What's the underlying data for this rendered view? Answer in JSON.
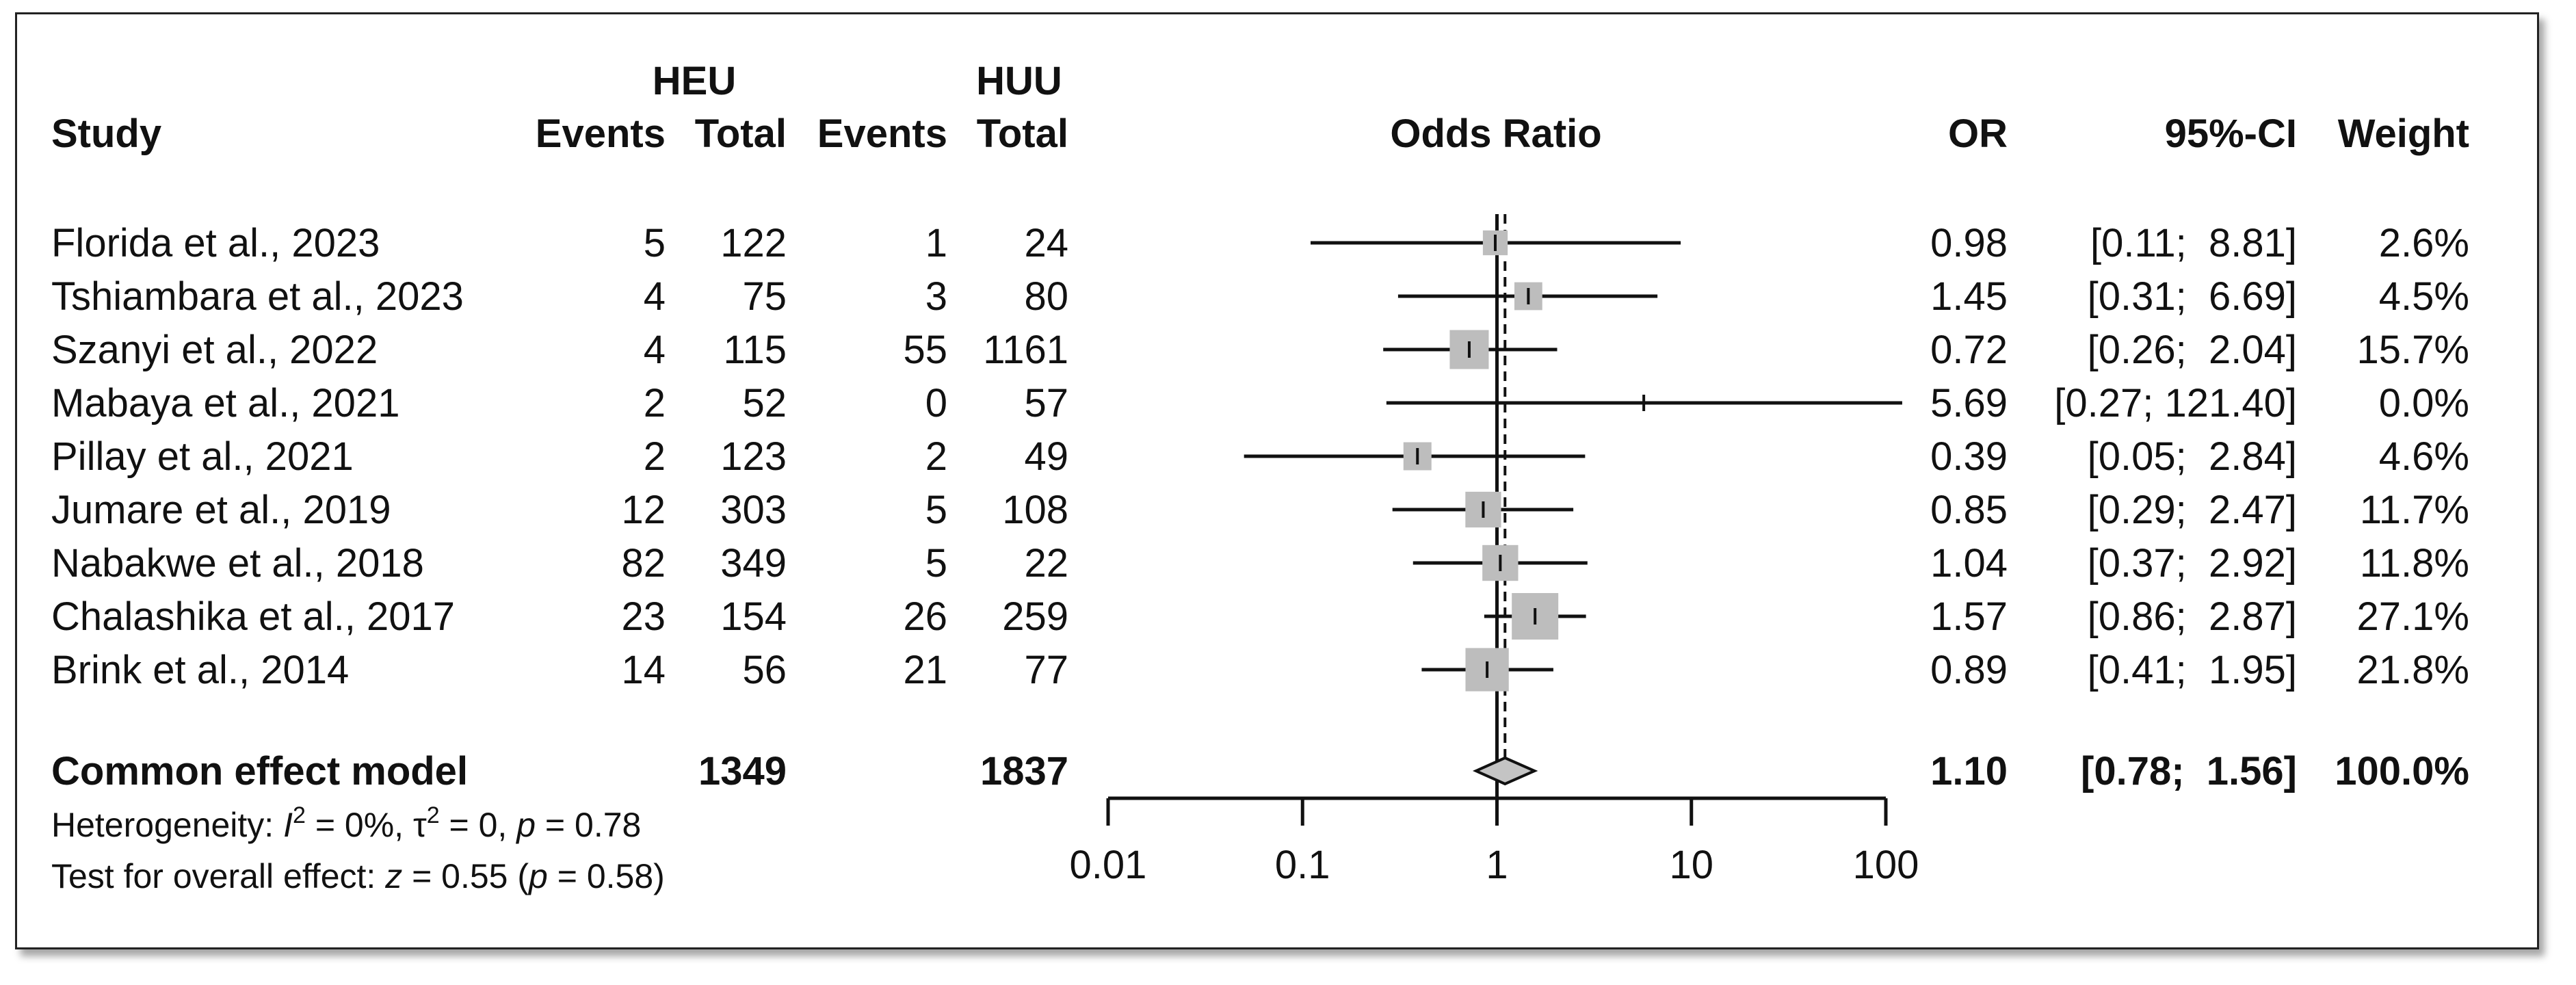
{
  "headers": {
    "study": "Study",
    "group1": "HEU",
    "group2": "HUU",
    "events": "Events",
    "total": "Total",
    "plot": "Odds Ratio",
    "or": "OR",
    "ci": "95%-CI",
    "weight": "Weight"
  },
  "studies": [
    {
      "study": "Florida et al., 2023",
      "e1": "5",
      "n1": "122",
      "e2": "1",
      "n2": "24",
      "or_text": "0.98",
      "ci_text": "[0.11;  8.81]",
      "weight_text": "2.6%"
    },
    {
      "study": "Tshiambara et al., 2023",
      "e1": "4",
      "n1": "75",
      "e2": "3",
      "n2": "80",
      "or_text": "1.45",
      "ci_text": "[0.31;  6.69]",
      "weight_text": "4.5%"
    },
    {
      "study": "Szanyi et al., 2022",
      "e1": "4",
      "n1": "115",
      "e2": "55",
      "n2": "1161",
      "or_text": "0.72",
      "ci_text": "[0.26;  2.04]",
      "weight_text": "15.7%"
    },
    {
      "study": "Mabaya et al., 2021",
      "e1": "2",
      "n1": "52",
      "e2": "0",
      "n2": "57",
      "or_text": "5.69",
      "ci_text": "[0.27; 121.40]",
      "weight_text": "0.0%"
    },
    {
      "study": "Pillay et al., 2021",
      "e1": "2",
      "n1": "123",
      "e2": "2",
      "n2": "49",
      "or_text": "0.39",
      "ci_text": "[0.05;  2.84]",
      "weight_text": "4.6%"
    },
    {
      "study": "Jumare et al., 2019",
      "e1": "12",
      "n1": "303",
      "e2": "5",
      "n2": "108",
      "or_text": "0.85",
      "ci_text": "[0.29;  2.47]",
      "weight_text": "11.7%"
    },
    {
      "study": "Nabakwe et al., 2018",
      "e1": "82",
      "n1": "349",
      "e2": "5",
      "n2": "22",
      "or_text": "1.04",
      "ci_text": "[0.37;  2.92]",
      "weight_text": "11.8%"
    },
    {
      "study": "Chalashika et al., 2017",
      "e1": "23",
      "n1": "154",
      "e2": "26",
      "n2": "259",
      "or_text": "1.57",
      "ci_text": "[0.86;  2.87]",
      "weight_text": "27.1%"
    },
    {
      "study": "Brink et al., 2014",
      "e1": "14",
      "n1": "56",
      "e2": "21",
      "n2": "77",
      "or_text": "0.89",
      "ci_text": "[0.41;  1.95]",
      "weight_text": "21.8%"
    }
  ],
  "summary": {
    "label": "Common effect model",
    "n1": "1349",
    "n2": "1837",
    "or_text": "1.10",
    "ci_text": "[0.78;  1.56]",
    "weight_text": "100.0%"
  },
  "footnotes": {
    "heterogeneity_prefix": "Heterogeneity: ",
    "i2_symbol": "I",
    "i2_rest": " = 0%, ",
    "tau_symbol": "τ",
    "tau_rest": " = 0, ",
    "p_symbol": "p",
    "p_rest": " = 0.78",
    "test_prefix": "Test for overall effect: ",
    "z_symbol": "z",
    "z_rest": " = 0.55 (",
    "p2_symbol": "p",
    "p2_rest": " = 0.58)"
  },
  "chart_data": {
    "type": "forest",
    "scale": "log",
    "xlim": [
      0.01,
      100
    ],
    "ticks": [
      0.01,
      0.1,
      1,
      10,
      100
    ],
    "tick_labels": [
      "0.01",
      "0.1",
      "1",
      "10",
      "100"
    ],
    "reference_line": 1,
    "points": [
      {
        "or": 0.98,
        "lo": 0.11,
        "hi": 8.81,
        "weight": 2.6
      },
      {
        "or": 1.45,
        "lo": 0.31,
        "hi": 6.69,
        "weight": 4.5
      },
      {
        "or": 0.72,
        "lo": 0.26,
        "hi": 2.04,
        "weight": 15.7
      },
      {
        "or": 5.69,
        "lo": 0.27,
        "hi": 121.4,
        "weight": 0.0
      },
      {
        "or": 0.39,
        "lo": 0.05,
        "hi": 2.84,
        "weight": 4.6
      },
      {
        "or": 0.85,
        "lo": 0.29,
        "hi": 2.47,
        "weight": 11.7
      },
      {
        "or": 1.04,
        "lo": 0.37,
        "hi": 2.92,
        "weight": 11.8
      },
      {
        "or": 1.57,
        "lo": 0.86,
        "hi": 2.87,
        "weight": 27.1
      },
      {
        "or": 0.89,
        "lo": 0.41,
        "hi": 1.95,
        "weight": 21.8
      }
    ],
    "summary": {
      "or": 1.1,
      "lo": 0.78,
      "hi": 1.56
    },
    "colors": {
      "square": "#bdbdbd",
      "diamond": "#c4c4c4",
      "line": "#111111"
    }
  }
}
